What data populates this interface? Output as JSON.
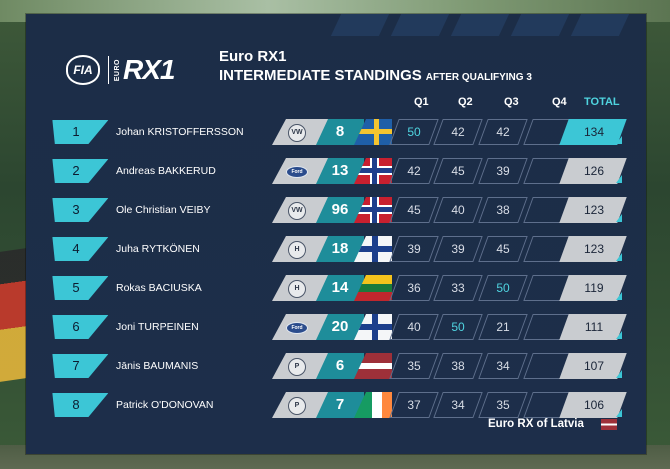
{
  "header": {
    "fia_label": "FIA",
    "euro_label": "EURO",
    "series_logo": "RX1",
    "series_name": "Euro RX1",
    "title": "INTERMEDIATE STANDINGS",
    "subtitle": "AFTER QUALIFYING  3"
  },
  "columns": {
    "q1": "Q1",
    "q2": "Q2",
    "q3": "Q3",
    "q4": "Q4",
    "total": "TOTAL"
  },
  "colors": {
    "accent": "#3cc6d6",
    "panel": "#1c2d47",
    "number_box": "#1e8d9a",
    "highlight_score": "#4fd4e0"
  },
  "standings": [
    {
      "pos": "1",
      "driver": "Johan KRISTOFFERSSON",
      "team_icon": "volkswagen-icon",
      "number": "8",
      "flag": "sweden-flag",
      "q1": "50",
      "q2": "42",
      "q3": "42",
      "q4": "",
      "total": "134"
    },
    {
      "pos": "2",
      "driver": "Andreas BAKKERUD",
      "team_icon": "ford-icon",
      "number": "13",
      "flag": "norway-flag",
      "q1": "42",
      "q2": "45",
      "q3": "39",
      "q4": "",
      "total": "126"
    },
    {
      "pos": "3",
      "driver": "Ole Christian VEIBY",
      "team_icon": "volkswagen-icon",
      "number": "96",
      "flag": "norway-flag",
      "q1": "45",
      "q2": "40",
      "q3": "38",
      "q4": "",
      "total": "123"
    },
    {
      "pos": "4",
      "driver": "Juha RYTKÖNEN",
      "team_icon": "hyundai-icon",
      "number": "18",
      "flag": "finland-flag",
      "q1": "39",
      "q2": "39",
      "q3": "45",
      "q4": "",
      "total": "123"
    },
    {
      "pos": "5",
      "driver": "Rokas BACIUSKA",
      "team_icon": "hyundai-icon",
      "number": "14",
      "flag": "lithuania-flag",
      "q1": "36",
      "q2": "33",
      "q3": "50",
      "q4": "",
      "total": "119"
    },
    {
      "pos": "6",
      "driver": "Joni TURPEINEN",
      "team_icon": "ford-icon",
      "number": "20",
      "flag": "finland-flag",
      "q1": "40",
      "q2": "50",
      "q3": "21",
      "q4": "",
      "total": "111"
    },
    {
      "pos": "7",
      "driver": "Jānis BAUMANIS",
      "team_icon": "peugeot-icon",
      "number": "6",
      "flag": "latvia-flag",
      "q1": "35",
      "q2": "38",
      "q3": "34",
      "q4": "",
      "total": "107"
    },
    {
      "pos": "8",
      "driver": "Patrick O'DONOVAN",
      "team_icon": "peugeot-icon",
      "number": "7",
      "flag": "ireland-flag",
      "q1": "37",
      "q2": "34",
      "q3": "35",
      "q4": "",
      "total": "106"
    }
  ],
  "footer": {
    "event": "Euro RX of Latvia",
    "flag": "latvia-flag"
  }
}
